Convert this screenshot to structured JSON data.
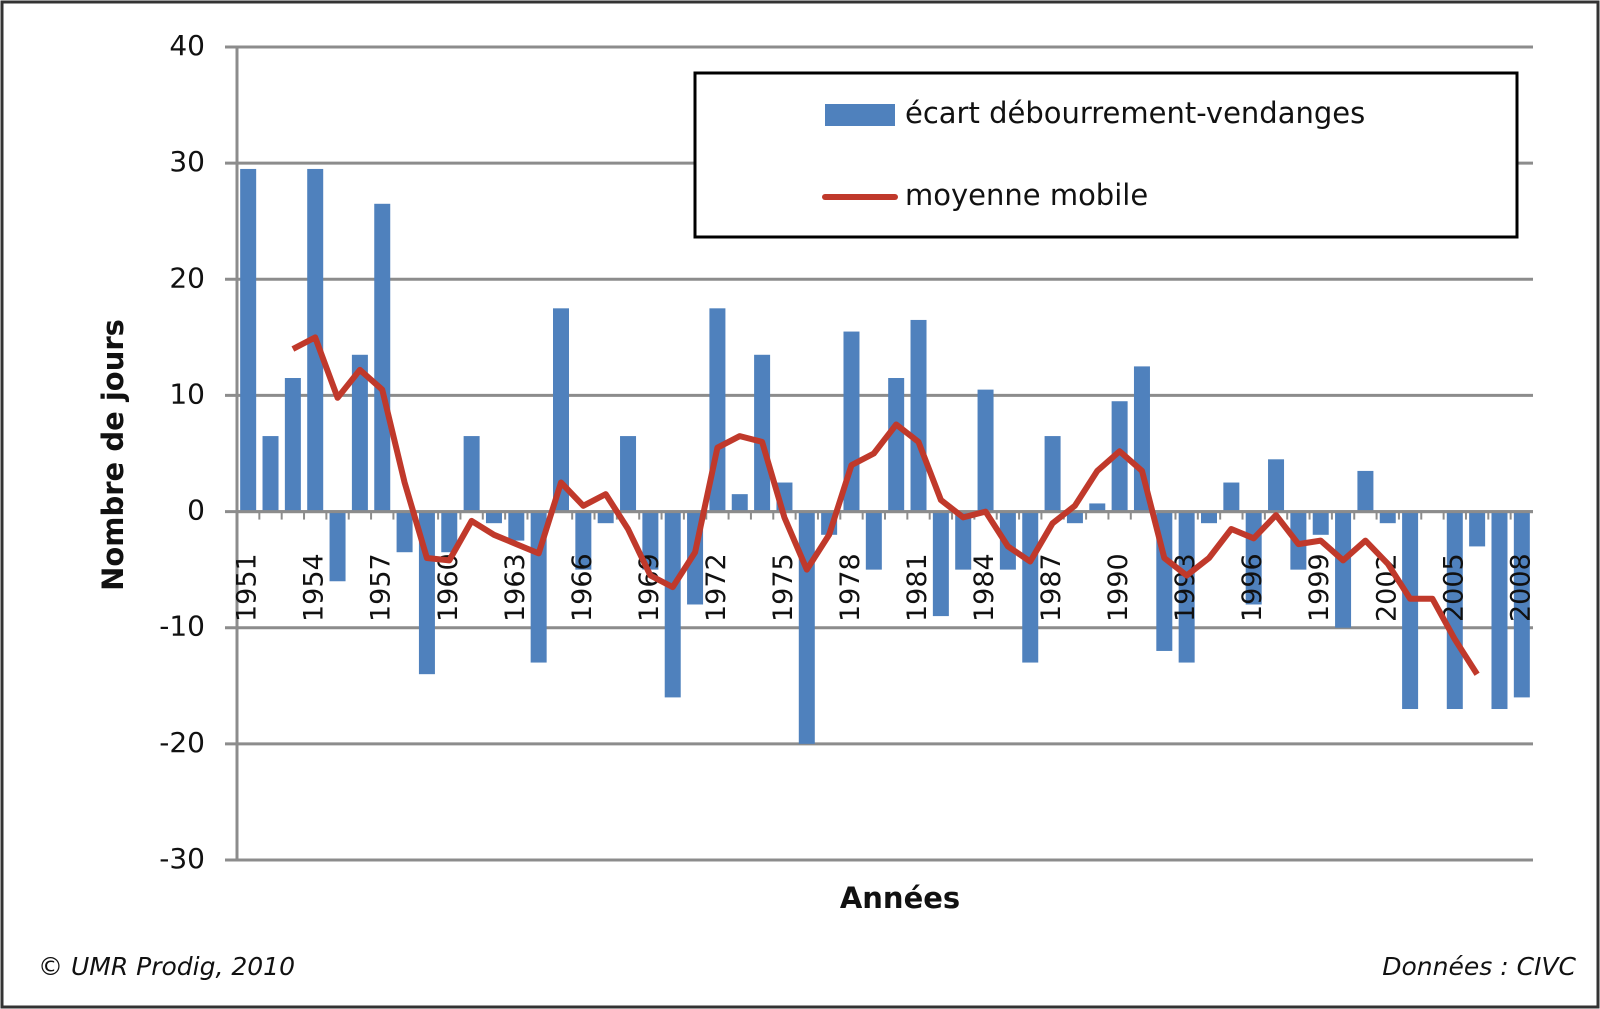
{
  "chart_data": {
    "type": "bar_line",
    "y_label": "Nombre de jours",
    "x_label": "Années",
    "categories": [
      "1951",
      null,
      null,
      "1954",
      null,
      null,
      "1957",
      null,
      null,
      "1960",
      null,
      null,
      "1963",
      null,
      null,
      "1966",
      null,
      null,
      "1969",
      null,
      null,
      "1972",
      null,
      null,
      "1975",
      null,
      null,
      "1978",
      null,
      null,
      "1981",
      null,
      null,
      "1984",
      null,
      null,
      "1987",
      null,
      null,
      "1990",
      null,
      null,
      "1993",
      null,
      null,
      "1996",
      null,
      null,
      "1999",
      null,
      null,
      "2002",
      null,
      null,
      "2005",
      null,
      null,
      "2008"
    ],
    "series": [
      {
        "name": "écart débourrement-vendanges",
        "type": "bar",
        "color": "#4f81bd",
        "values": [
          29.5,
          6.5,
          11.5,
          29.5,
          -6,
          13.5,
          26.5,
          -3.5,
          -14,
          -3.5,
          6.5,
          -1,
          -2.5,
          -13,
          17.5,
          -5,
          -1,
          6.5,
          -5,
          -16,
          -8,
          17.5,
          1.5,
          13.5,
          2.5,
          -20,
          -2,
          15.5,
          -5,
          11.5,
          16.5,
          -9,
          -5,
          10.5,
          -5,
          -13,
          6.5,
          -1,
          0.7,
          9.5,
          12.5,
          -12,
          -13,
          -1,
          2.5,
          -8,
          4.5,
          -5,
          -2,
          -10,
          3.5,
          -1,
          -17,
          0,
          -17,
          -3,
          -17,
          -16
        ]
      },
      {
        "name": "moyenne mobile",
        "type": "line",
        "color": "#c0392b",
        "values": [
          null,
          null,
          14,
          15,
          9.8,
          12.2,
          10.5,
          2.5,
          -4,
          -4.2,
          -0.8,
          -2,
          -2.8,
          -3.6,
          2.5,
          0.5,
          1.5,
          -1.5,
          -5.5,
          -6.5,
          -3.5,
          5.5,
          6.5,
          6,
          -0.5,
          -5,
          -2,
          4,
          5,
          7.5,
          6,
          1,
          -0.5,
          0,
          -3,
          -4.3,
          -1,
          0.5,
          3.5,
          5.2,
          3.5,
          -4,
          -5.5,
          -4,
          -1.5,
          -2.3,
          -0.3,
          -2.8,
          -2.5,
          -4.2,
          -2.5,
          -4.5,
          -7.5,
          -7.5,
          -11,
          -14,
          null,
          null
        ]
      }
    ],
    "ylim": [
      -30,
      40
    ],
    "yticks": [
      -30,
      -20,
      -10,
      0,
      10,
      20,
      30,
      40
    ],
    "grid": true,
    "legend": "top-right",
    "footer_left": "© UMR Prodig, 2010",
    "footer_right": "Données : CIVC"
  }
}
